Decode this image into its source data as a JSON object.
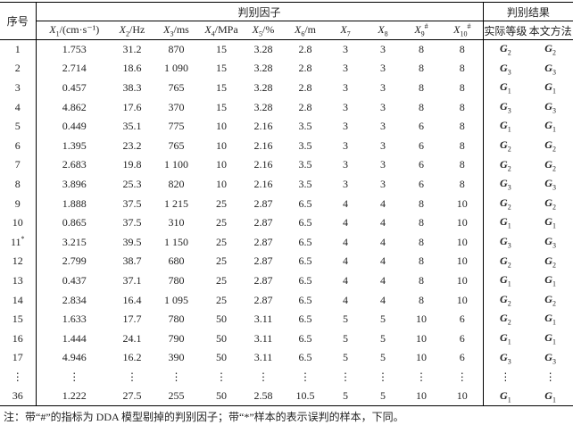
{
  "header": {
    "index": "序号",
    "factors": "判别因子",
    "results": "判别结果"
  },
  "columns": [
    {
      "sym": "X",
      "sub": "1",
      "unit": "/(cm·s⁻¹)"
    },
    {
      "sym": "X",
      "sub": "2",
      "unit": "/Hz"
    },
    {
      "sym": "X",
      "sub": "3",
      "unit": "/ms"
    },
    {
      "sym": "X",
      "sub": "4",
      "unit": "/MPa"
    },
    {
      "sym": "X",
      "sub": "5",
      "unit": "/%"
    },
    {
      "sym": "X",
      "sub": "6",
      "unit": "/m"
    },
    {
      "sym": "X",
      "sub": "7"
    },
    {
      "sym": "X",
      "sub": "8"
    },
    {
      "sym": "X",
      "sub": "9",
      "sup": "#"
    },
    {
      "sym": "X",
      "sub": "10",
      "sup": "#"
    }
  ],
  "result_columns": [
    "实际等级",
    "本文方法"
  ],
  "grade_symbol": "G",
  "rows": [
    {
      "id": "1",
      "cells": [
        "1.753",
        "31.2",
        "870",
        "15",
        "3.28",
        "2.8",
        "3",
        "3",
        "8",
        "8"
      ],
      "grades": [
        "2",
        "2"
      ]
    },
    {
      "id": "2",
      "cells": [
        "2.714",
        "18.6",
        "1 090",
        "15",
        "3.28",
        "2.8",
        "3",
        "3",
        "8",
        "8"
      ],
      "grades": [
        "3",
        "3"
      ]
    },
    {
      "id": "3",
      "cells": [
        "0.457",
        "38.3",
        "765",
        "15",
        "3.28",
        "2.8",
        "3",
        "3",
        "8",
        "8"
      ],
      "grades": [
        "1",
        "1"
      ]
    },
    {
      "id": "4",
      "cells": [
        "4.862",
        "17.6",
        "370",
        "15",
        "3.28",
        "2.8",
        "3",
        "3",
        "8",
        "8"
      ],
      "grades": [
        "3",
        "3"
      ]
    },
    {
      "id": "5",
      "cells": [
        "0.449",
        "35.1",
        "775",
        "10",
        "2.16",
        "3.5",
        "3",
        "3",
        "6",
        "8"
      ],
      "grades": [
        "1",
        "1"
      ]
    },
    {
      "id": "6",
      "cells": [
        "1.395",
        "23.2",
        "765",
        "10",
        "2.16",
        "3.5",
        "3",
        "3",
        "6",
        "8"
      ],
      "grades": [
        "2",
        "2"
      ]
    },
    {
      "id": "7",
      "cells": [
        "2.683",
        "19.8",
        "1 100",
        "10",
        "2.16",
        "3.5",
        "3",
        "3",
        "6",
        "8"
      ],
      "grades": [
        "2",
        "2"
      ]
    },
    {
      "id": "8",
      "cells": [
        "3.896",
        "25.3",
        "820",
        "10",
        "2.16",
        "3.5",
        "3",
        "3",
        "6",
        "8"
      ],
      "grades": [
        "3",
        "3"
      ]
    },
    {
      "id": "9",
      "cells": [
        "1.888",
        "37.5",
        "1 215",
        "25",
        "2.87",
        "6.5",
        "4",
        "4",
        "8",
        "10"
      ],
      "grades": [
        "2",
        "2"
      ]
    },
    {
      "id": "10",
      "cells": [
        "0.865",
        "37.5",
        "310",
        "25",
        "2.87",
        "6.5",
        "4",
        "4",
        "8",
        "10"
      ],
      "grades": [
        "1",
        "1"
      ]
    },
    {
      "id": "11",
      "mark": "*",
      "cells": [
        "3.215",
        "39.5",
        "1 150",
        "25",
        "2.87",
        "6.5",
        "4",
        "4",
        "8",
        "10"
      ],
      "grades": [
        "3",
        "3"
      ]
    },
    {
      "id": "12",
      "cells": [
        "2.799",
        "38.7",
        "680",
        "25",
        "2.87",
        "6.5",
        "4",
        "4",
        "8",
        "10"
      ],
      "grades": [
        "2",
        "2"
      ]
    },
    {
      "id": "13",
      "cells": [
        "0.437",
        "37.1",
        "780",
        "25",
        "2.87",
        "6.5",
        "4",
        "4",
        "8",
        "10"
      ],
      "grades": [
        "1",
        "1"
      ]
    },
    {
      "id": "14",
      "cells": [
        "2.834",
        "16.4",
        "1 095",
        "25",
        "2.87",
        "6.5",
        "4",
        "4",
        "8",
        "10"
      ],
      "grades": [
        "2",
        "2"
      ]
    },
    {
      "id": "15",
      "cells": [
        "1.633",
        "17.7",
        "780",
        "50",
        "3.11",
        "6.5",
        "5",
        "5",
        "10",
        "6"
      ],
      "grades": [
        "2",
        "1"
      ]
    },
    {
      "id": "16",
      "cells": [
        "1.444",
        "24.1",
        "790",
        "50",
        "3.11",
        "6.5",
        "5",
        "5",
        "10",
        "6"
      ],
      "grades": [
        "1",
        "1"
      ]
    },
    {
      "id": "17",
      "cells": [
        "4.946",
        "16.2",
        "390",
        "50",
        "3.11",
        "6.5",
        "5",
        "5",
        "10",
        "6"
      ],
      "grades": [
        "3",
        "3"
      ]
    },
    {
      "id": "⋮",
      "cells": [
        "⋮",
        "⋮",
        "⋮",
        "⋮",
        "⋮",
        "⋮",
        "⋮",
        "⋮",
        "⋮",
        "⋮"
      ],
      "ellipsis": "⋮"
    },
    {
      "id": "36",
      "cells": [
        "1.222",
        "27.5",
        "255",
        "50",
        "2.58",
        "10.5",
        "5",
        "5",
        "10",
        "10"
      ],
      "grades": [
        "1",
        "1"
      ]
    }
  ],
  "footnote": "注：带“#”的指标为 DDA 模型剔掉的判别因子；带“*”样本的表示误判的样本，下同。"
}
